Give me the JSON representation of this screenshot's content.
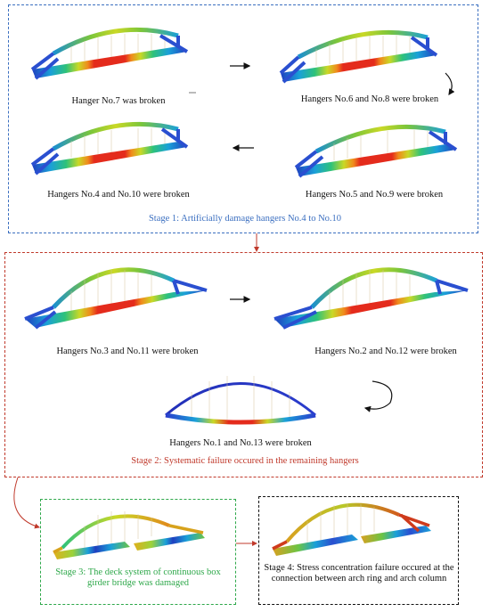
{
  "stage1": {
    "title": "Stage 1: Artificially damage hangers No.4 to No.10",
    "captions": [
      "Hanger No.7 was broken",
      "Hangers No.6 and No.8 were broken",
      "Hangers No.4 and No.10 were broken",
      "Hangers No.5 and No.9 were broken"
    ],
    "border_color": "#3b6fc0"
  },
  "stage2": {
    "title": "Stage 2: Systematic failure occured in the remaining hangers",
    "captions": [
      "Hangers No.3 and No.11 were broken",
      "Hangers No.2 and No.12 were broken",
      "Hangers No.1 and No.13 were broken"
    ],
    "border_color": "#c0392b"
  },
  "stage3": {
    "title": "Stage 3: The deck system of continuous box girder bridge was damaged",
    "border_color": "#2ea84a"
  },
  "stage4": {
    "title": "Stage 4: Stress concentration failure occured at the connection between arch ring and arch column",
    "border_color": "#111111"
  }
}
